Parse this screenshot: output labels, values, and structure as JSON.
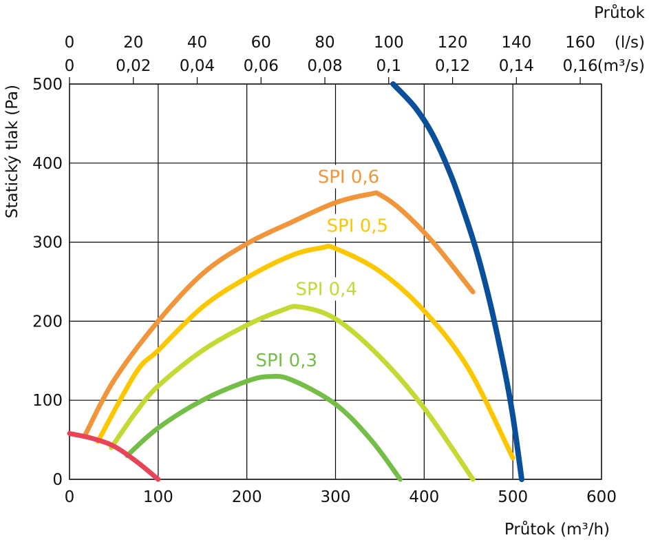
{
  "chart_data": {
    "type": "line",
    "xlabel_bottom": "Průtok (m³/h)",
    "xlabel_top": "Průtok",
    "ylabel": "Statický tlak  (Pa)",
    "xlim": [
      0,
      600
    ],
    "ylim": [
      0,
      500
    ],
    "x_ticks": [
      {
        "value": 0,
        "label": "0"
      },
      {
        "value": 100,
        "label": "100"
      },
      {
        "value": 200,
        "label": "200"
      },
      {
        "value": 300,
        "label": "300"
      },
      {
        "value": 400,
        "label": "400"
      },
      {
        "value": 500,
        "label": "500"
      },
      {
        "value": 600,
        "label": "600"
      }
    ],
    "y_ticks": [
      {
        "value": 0,
        "label": "0"
      },
      {
        "value": 100,
        "label": "100"
      },
      {
        "value": 200,
        "label": "200"
      },
      {
        "value": 300,
        "label": "300"
      },
      {
        "value": 400,
        "label": "400"
      },
      {
        "value": 500,
        "label": "500"
      }
    ],
    "top_axis_ls": {
      "unit": "(l/s)",
      "ticks": [
        {
          "value": 0,
          "label": "0"
        },
        {
          "value": 20,
          "label": "20"
        },
        {
          "value": 40,
          "label": "40"
        },
        {
          "value": 60,
          "label": "60"
        },
        {
          "value": 80,
          "label": "80"
        },
        {
          "value": 100,
          "label": "100"
        },
        {
          "value": 120,
          "label": "120"
        },
        {
          "value": 140,
          "label": "140"
        },
        {
          "value": 160,
          "label": "160"
        }
      ]
    },
    "top_axis_m3s": {
      "unit": "(m³/s)",
      "ticks": [
        {
          "value": 0,
          "label": "0"
        },
        {
          "value": 0.02,
          "label": "0,02"
        },
        {
          "value": 0.04,
          "label": "0,04"
        },
        {
          "value": 0.06,
          "label": "0,06"
        },
        {
          "value": 0.08,
          "label": "0,08"
        },
        {
          "value": 0.1,
          "label": "0,1"
        },
        {
          "value": 0.12,
          "label": "0,12"
        },
        {
          "value": 0.14,
          "label": "0,14"
        },
        {
          "value": 0.16,
          "label": "0,16"
        }
      ]
    },
    "grid": true,
    "series": [
      {
        "label": "SPI 0,6",
        "color": "#F0953A",
        "label_at": [
          280,
          375
        ],
        "points": [
          [
            18,
            57
          ],
          [
            50,
            125
          ],
          [
            100,
            200
          ],
          [
            150,
            260
          ],
          [
            200,
            298
          ],
          [
            250,
            325
          ],
          [
            300,
            350
          ],
          [
            340,
            361
          ],
          [
            350,
            360
          ],
          [
            375,
            340
          ],
          [
            410,
            300
          ],
          [
            455,
            237
          ]
        ]
      },
      {
        "label": "SPI 0,5",
        "color": "#FDC700",
        "label_at": [
          290,
          313
        ],
        "points": [
          [
            32,
            48
          ],
          [
            75,
            135
          ],
          [
            100,
            163
          ],
          [
            150,
            218
          ],
          [
            200,
            255
          ],
          [
            250,
            283
          ],
          [
            285,
            293
          ],
          [
            300,
            292
          ],
          [
            350,
            263
          ],
          [
            400,
            213
          ],
          [
            450,
            140
          ],
          [
            500,
            27
          ]
        ]
      },
      {
        "label": "SPI 0,4",
        "color": "#C5D934",
        "label_at": [
          255,
          233
        ],
        "points": [
          [
            47,
            40
          ],
          [
            75,
            85
          ],
          [
            100,
            118
          ],
          [
            150,
            163
          ],
          [
            200,
            195
          ],
          [
            240,
            214
          ],
          [
            260,
            218
          ],
          [
            300,
            203
          ],
          [
            350,
            155
          ],
          [
            400,
            90
          ],
          [
            455,
            0
          ]
        ]
      },
      {
        "label": "SPI 0,3",
        "color": "#74BE48",
        "label_at": [
          210,
          143
        ],
        "points": [
          [
            65,
            30
          ],
          [
            100,
            65
          ],
          [
            150,
            100
          ],
          [
            200,
            124
          ],
          [
            225,
            130
          ],
          [
            250,
            126
          ],
          [
            300,
            95
          ],
          [
            340,
            50
          ],
          [
            373,
            0
          ]
        ]
      },
      {
        "label": "",
        "color": "#E84356",
        "points": [
          [
            0,
            58
          ],
          [
            25,
            52
          ],
          [
            50,
            42
          ],
          [
            75,
            23
          ],
          [
            100,
            0
          ]
        ]
      },
      {
        "label": "",
        "color": "#0A4F99",
        "points": [
          [
            365,
            500
          ],
          [
            390,
            470
          ],
          [
            410,
            435
          ],
          [
            430,
            385
          ],
          [
            445,
            338
          ],
          [
            460,
            285
          ],
          [
            475,
            220
          ],
          [
            490,
            142
          ],
          [
            500,
            80
          ],
          [
            510,
            0
          ]
        ]
      }
    ]
  }
}
